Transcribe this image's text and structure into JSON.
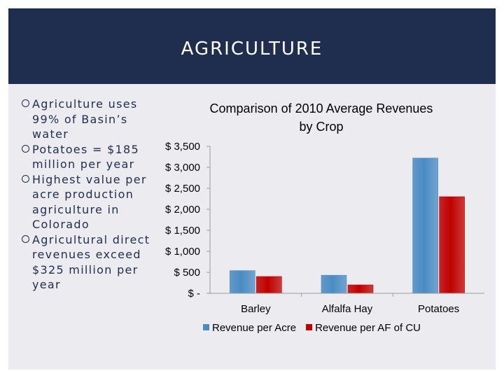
{
  "slide": {
    "title": "AGRICULTURE",
    "bullets": [
      "Agriculture uses 99% of Basin’s water",
      "Potatoes = $185 million per year",
      "Highest value per acre production agriculture in Colorado",
      "Agricultural direct revenues exceed $325 million per year"
    ]
  },
  "colors": {
    "title_band": "#1f2d4f",
    "series_acre": "#4a8bc4",
    "series_af": "#c00000"
  },
  "chart_data": {
    "type": "bar",
    "title": "Comparison of 2010 Average Revenues by Crop",
    "title_lines": [
      "Comparison of 2010 Average Revenues",
      "by Crop"
    ],
    "categories": [
      "Barley",
      "Alfalfa Hay",
      "Potatoes"
    ],
    "series": [
      {
        "name": "Revenue per Acre",
        "values": [
          540,
          430,
          3220
        ]
      },
      {
        "name": "Revenue per AF of CU",
        "values": [
          400,
          200,
          2300
        ]
      }
    ],
    "ylim": [
      0,
      3500
    ],
    "yticks": [
      0,
      500,
      1000,
      1500,
      2000,
      2500,
      3000,
      3500
    ],
    "ytick_labels": [
      "$ -",
      "$ 500",
      "$ 1,000",
      "$ 1,500",
      "$ 2,000",
      "$ 2,500",
      "$ 3,000",
      "$ 3,500"
    ],
    "xlabel": "",
    "ylabel": "",
    "legend_position": "bottom",
    "grid": false
  }
}
